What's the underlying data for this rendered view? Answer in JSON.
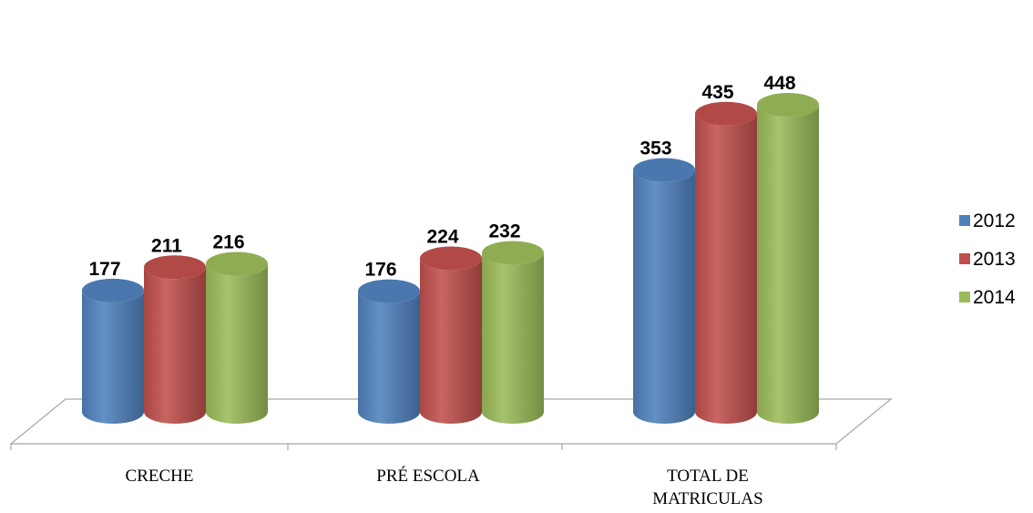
{
  "chart_data": {
    "type": "bar",
    "categories": [
      [
        "CRECHE"
      ],
      [
        "PRÉ ESCOLA"
      ],
      [
        "TOTAL DE",
        "MATRICULAS"
      ]
    ],
    "series": [
      {
        "name": "2012",
        "values": [
          177,
          176,
          353
        ],
        "color": "#4f81bd"
      },
      {
        "name": "2013",
        "values": [
          211,
          224,
          435
        ],
        "color": "#c0504d"
      },
      {
        "name": "2014",
        "values": [
          216,
          232,
          448
        ],
        "color": "#9bbb59"
      }
    ],
    "ylim": [
      0,
      448
    ],
    "legend_position": "right",
    "grid": false,
    "three_d": true,
    "data_labels": true
  }
}
